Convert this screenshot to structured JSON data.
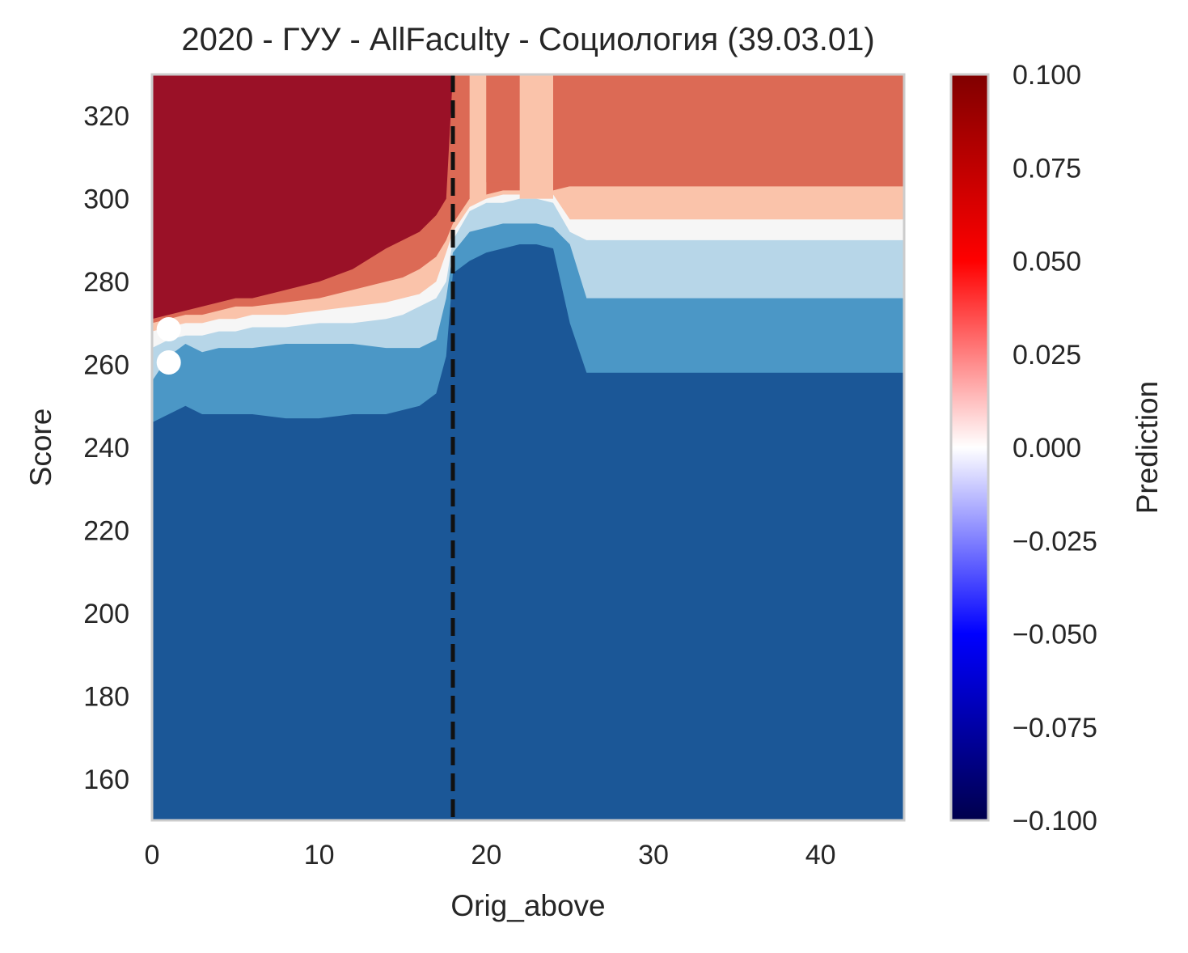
{
  "chart_data": {
    "type": "heatmap",
    "title": "2020 - ГУУ - AllFaculty - Социология (39.03.01)",
    "xlabel": "Orig_above",
    "ylabel": "Score",
    "xlim": [
      0,
      45
    ],
    "ylim": [
      150,
      330
    ],
    "x_ticks": [
      0,
      10,
      20,
      30,
      40
    ],
    "y_ticks": [
      160,
      180,
      200,
      220,
      240,
      260,
      280,
      300,
      320
    ],
    "grid": false,
    "colorbar": {
      "label": "Prediction",
      "colormap": "seismic",
      "range": [
        -0.1,
        0.1
      ],
      "ticks": [
        "0.100",
        "0.075",
        "0.050",
        "0.025",
        "0.000",
        "−0.025",
        "−0.050",
        "−0.075",
        "−0.100"
      ]
    },
    "level_colors": [
      "#1b5797",
      "#4b97c6",
      "#b7d6e8",
      "#f6f6f6",
      "#fac3aa",
      "#dc6a55",
      "#9a1127"
    ],
    "level_boundaries": [
      {
        "x": [
          0,
          1,
          2,
          3,
          4,
          5,
          6,
          8,
          10,
          12,
          14,
          16,
          17,
          17.6,
          18,
          19,
          20,
          21,
          22,
          23,
          24,
          25,
          26,
          30,
          35,
          45
        ],
        "y": [
          246,
          248,
          250,
          248,
          248,
          248,
          248,
          247,
          247,
          248,
          248,
          250,
          253,
          262,
          282,
          285,
          287,
          288,
          289,
          289,
          288,
          270,
          258,
          258,
          258,
          258
        ]
      },
      {
        "x": [
          0,
          1,
          2,
          3,
          4,
          5,
          6,
          8,
          10,
          12,
          14,
          15,
          16,
          17,
          17.6,
          18,
          19,
          20,
          21,
          22,
          23,
          24,
          25,
          26,
          30,
          35,
          45
        ],
        "y": [
          256,
          262,
          265,
          263,
          264,
          264,
          264,
          265,
          265,
          265,
          264,
          264,
          264,
          266,
          276,
          287,
          292,
          293,
          294,
          294,
          294,
          293,
          289,
          276,
          276,
          276,
          276
        ]
      },
      {
        "x": [
          0,
          1,
          2,
          3,
          4,
          5,
          6,
          8,
          10,
          12,
          14,
          15,
          16,
          17,
          17.6,
          18,
          19,
          20,
          21,
          22,
          23,
          24,
          25,
          26,
          30,
          35,
          45
        ],
        "y": [
          264,
          266,
          267,
          267,
          268,
          268,
          269,
          269,
          270,
          270,
          271,
          272,
          274,
          276,
          280,
          290,
          297,
          299,
          299,
          300,
          300,
          299,
          292,
          290,
          290,
          290,
          290
        ]
      },
      {
        "x": [
          0,
          1,
          2,
          3,
          4,
          5,
          6,
          8,
          10,
          12,
          14,
          15,
          16,
          17,
          17.6,
          18,
          19,
          20,
          21,
          22,
          23,
          24,
          25,
          26,
          30,
          35,
          45
        ],
        "y": [
          268,
          269,
          270,
          270,
          271,
          271,
          272,
          272,
          273,
          274,
          275,
          276,
          277,
          280,
          287,
          292,
          298,
          300,
          301,
          301,
          302,
          301,
          295,
          295,
          295,
          295,
          295
        ]
      },
      {
        "x": [
          0,
          1,
          2,
          3,
          4,
          5,
          6,
          8,
          10,
          12,
          14,
          15,
          16,
          17,
          17.6,
          18,
          19,
          20,
          21,
          22,
          23,
          24,
          25,
          26,
          30,
          35,
          45
        ],
        "y": [
          270,
          271,
          272,
          272,
          273,
          274,
          274,
          275,
          276,
          278,
          280,
          281,
          283,
          286,
          290,
          294,
          300,
          301,
          302,
          302,
          303,
          302,
          303,
          303,
          303,
          303,
          303
        ]
      },
      {
        "x": [
          0,
          1,
          2,
          3,
          4,
          5,
          6,
          8,
          10,
          12,
          14,
          15,
          16,
          17,
          17.6,
          18,
          19,
          20,
          21,
          22,
          23,
          24,
          25,
          26,
          30,
          35,
          45
        ],
        "y": [
          271,
          272,
          273,
          274,
          275,
          276,
          276,
          278,
          280,
          283,
          288,
          290,
          292,
          296,
          300,
          330,
          330,
          330,
          330,
          330,
          330,
          330,
          330,
          330,
          330,
          330,
          330
        ]
      }
    ],
    "upper_band_columns": [
      {
        "x0": 19,
        "x1": 20,
        "level": 4
      },
      {
        "x0": 20,
        "x1": 22,
        "level": 5,
        "y0": 304
      },
      {
        "x0": 22,
        "x1": 24,
        "level": 4
      },
      {
        "x0": 24,
        "x1": 45,
        "level": 5,
        "y0": 303
      }
    ],
    "vline": {
      "x": 18,
      "style": "dashed",
      "color": "#111111"
    },
    "points": [
      {
        "x": 1,
        "y": 268.5,
        "color": "#ffffff"
      },
      {
        "x": 1,
        "y": 260.5,
        "color": "#ffffff"
      }
    ]
  }
}
